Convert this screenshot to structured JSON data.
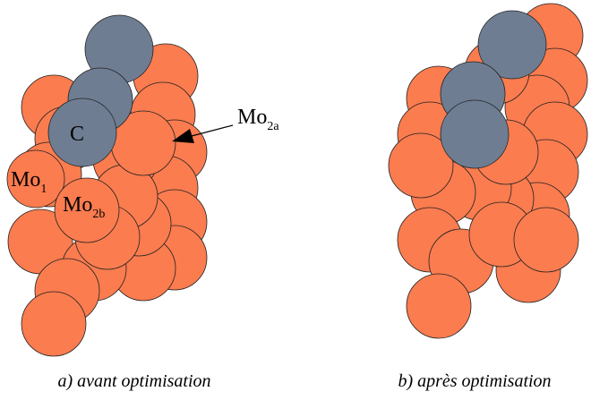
{
  "labels": [
    {
      "text": "C"
    },
    {
      "text": "Mo",
      "sub": "1"
    },
    {
      "text": "Mo",
      "sub": "2b"
    },
    {
      "text": "Mo",
      "sub": "2a"
    }
  ],
  "captions": [
    "a) avant optimisation",
    "b) après optimisation"
  ]
}
